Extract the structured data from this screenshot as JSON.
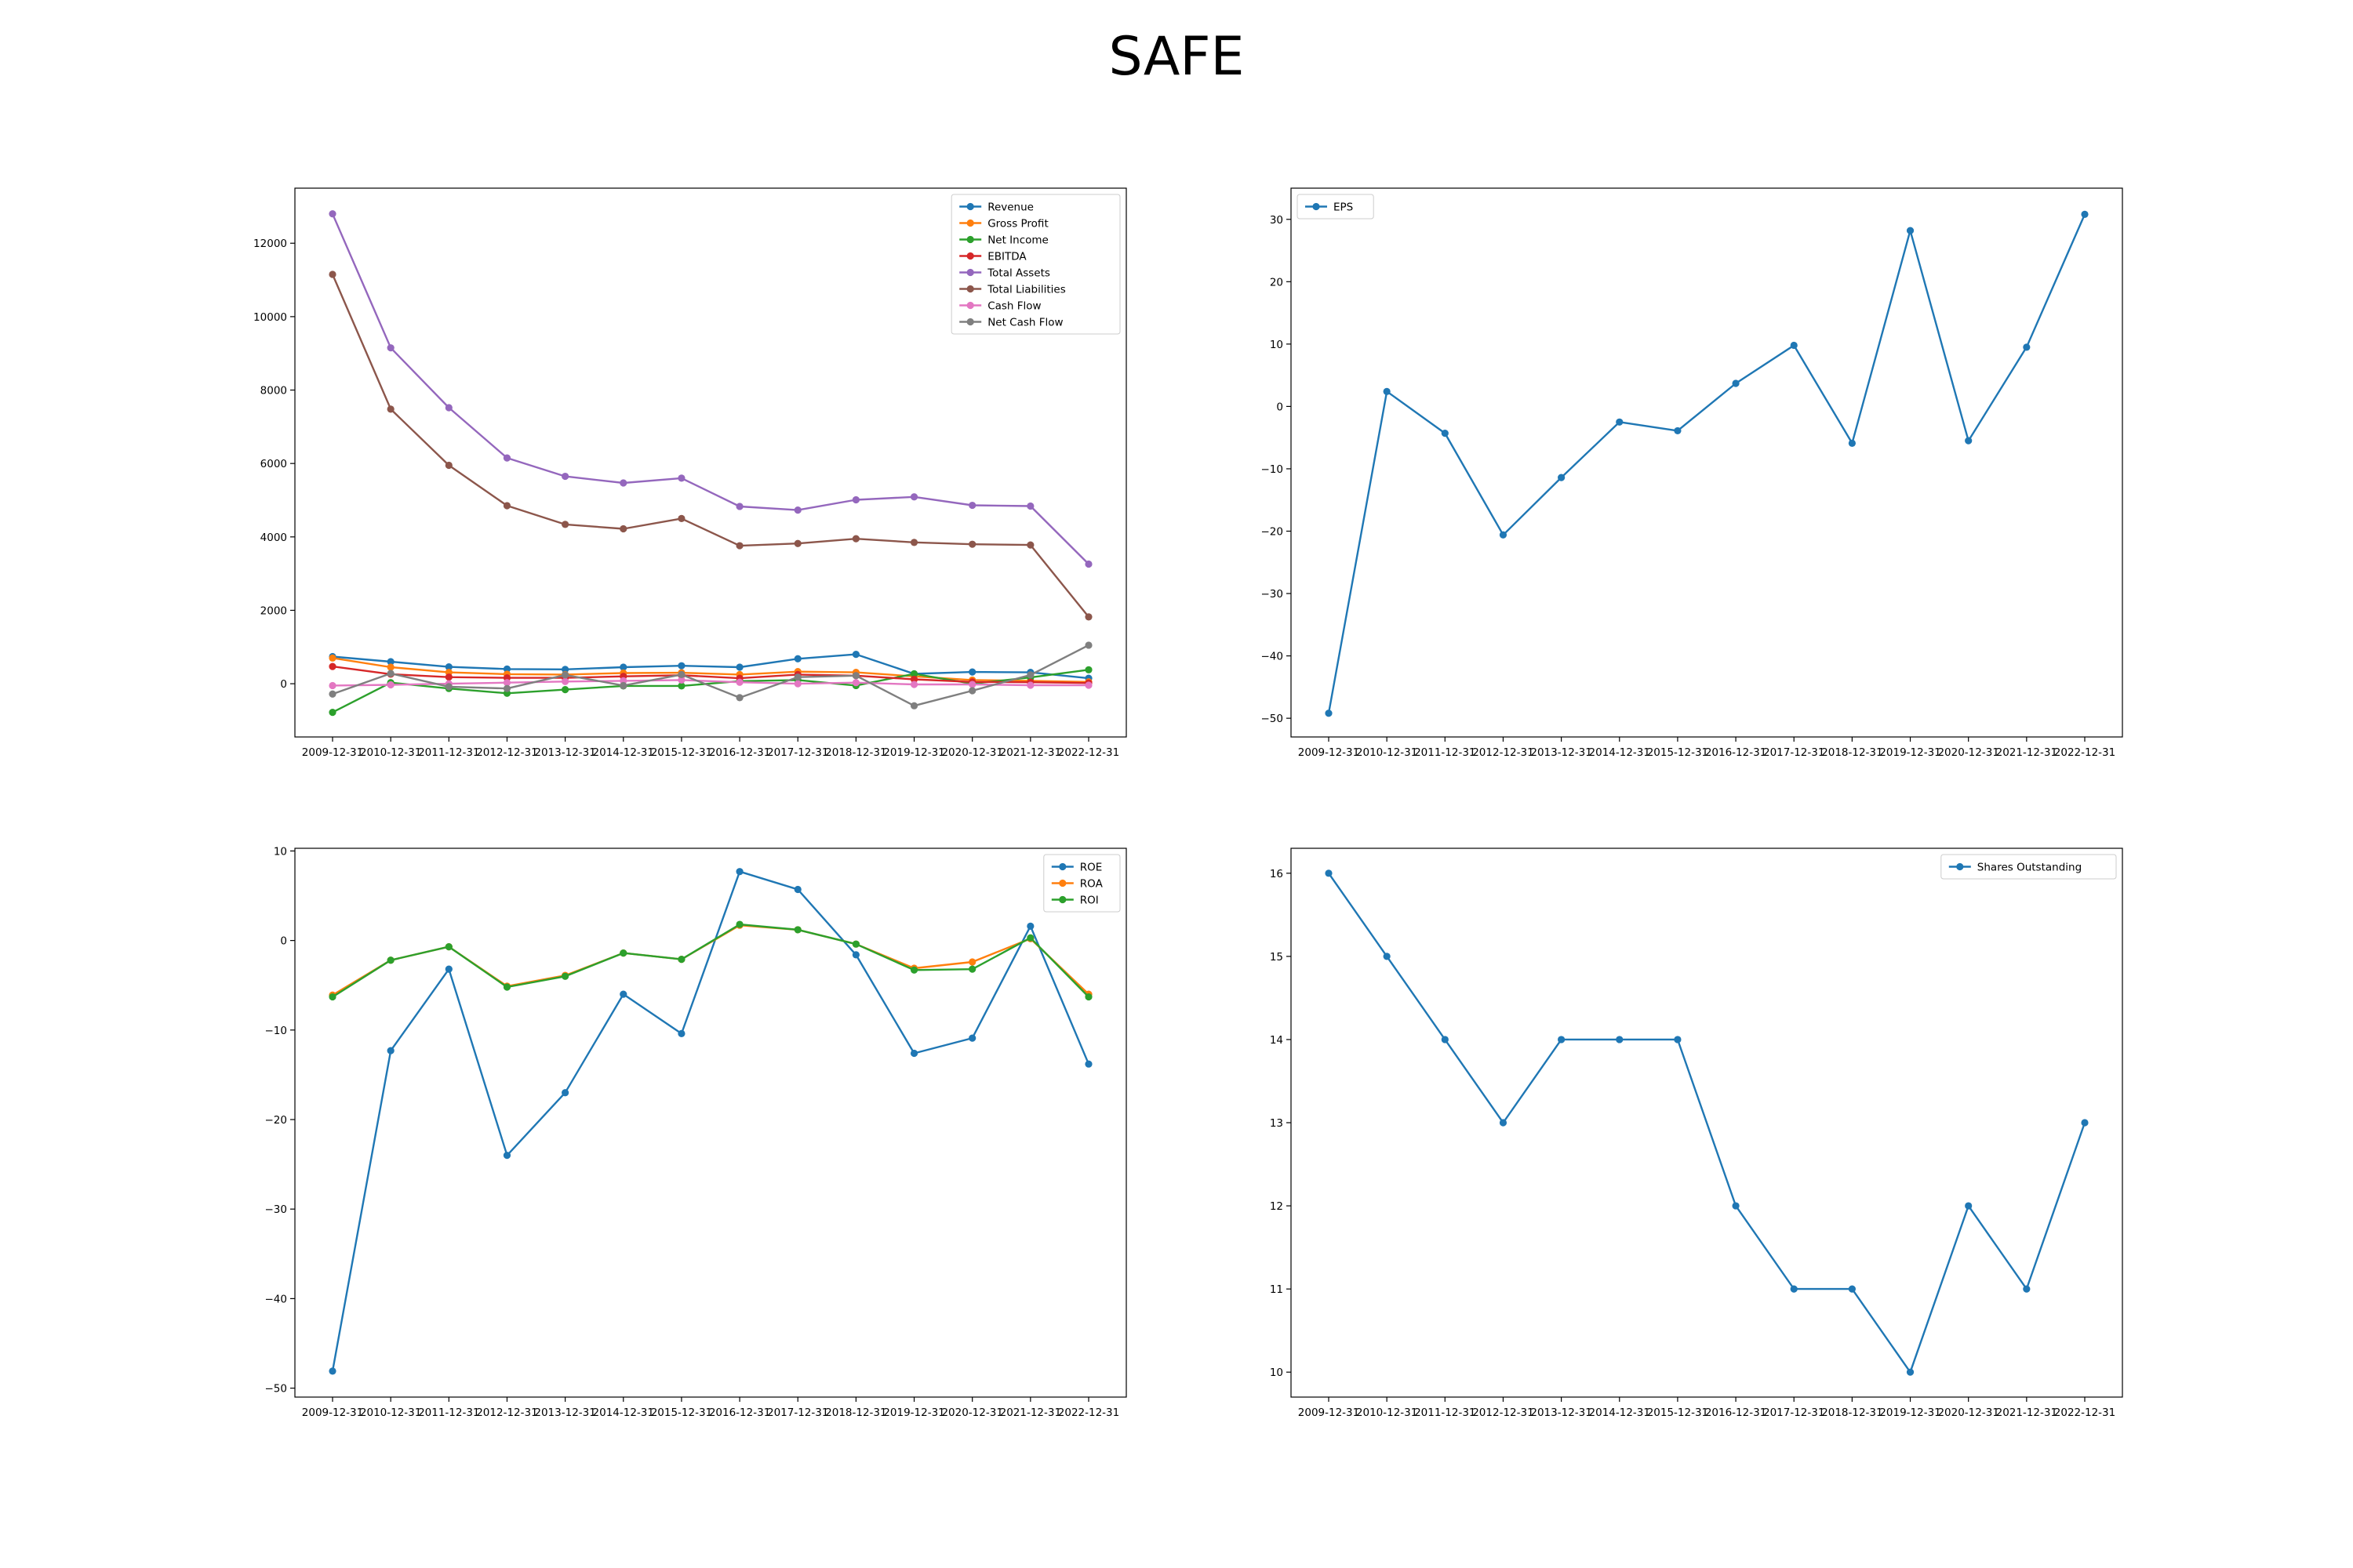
{
  "figure": {
    "title": "SAFE"
  },
  "chart_data": [
    {
      "type": "line",
      "title": "",
      "xlabel": "",
      "ylabel": "",
      "categories": [
        "2009-12-31",
        "2010-12-31",
        "2011-12-31",
        "2012-12-31",
        "2013-12-31",
        "2014-12-31",
        "2015-12-31",
        "2016-12-31",
        "2017-12-31",
        "2018-12-31",
        "2019-12-31",
        "2020-12-31",
        "2021-12-31",
        "2022-12-31"
      ],
      "ylim": [
        -1450,
        13500
      ],
      "yticks": [
        0,
        2000,
        4000,
        6000,
        8000,
        10000,
        12000
      ],
      "legend": "top-right",
      "grid": false,
      "series": [
        {
          "name": "Revenue",
          "color": "#1f77b4",
          "values": [
            740,
            600,
            460,
            400,
            390,
            450,
            490,
            450,
            680,
            800,
            270,
            320,
            310,
            150
          ]
        },
        {
          "name": "Gross Profit",
          "color": "#ff7f0e",
          "values": [
            700,
            450,
            310,
            260,
            250,
            290,
            300,
            250,
            330,
            310,
            200,
            100,
            80,
            50
          ]
        },
        {
          "name": "Net Income",
          "color": "#2ca02c",
          "values": [
            -780,
            30,
            -130,
            -260,
            -160,
            -60,
            -60,
            70,
            100,
            -50,
            270,
            0,
            170,
            380
          ]
        },
        {
          "name": "EBITDA",
          "color": "#d62728",
          "values": [
            470,
            260,
            180,
            160,
            160,
            200,
            230,
            150,
            250,
            220,
            120,
            50,
            40,
            20
          ]
        },
        {
          "name": "Total Assets",
          "color": "#9467bd",
          "values": [
            12800,
            9150,
            7520,
            6150,
            5650,
            5470,
            5600,
            4830,
            4730,
            5010,
            5090,
            4860,
            4840,
            3260
          ]
        },
        {
          "name": "Total Liabilities",
          "color": "#8c564b",
          "values": [
            11150,
            7480,
            5950,
            4850,
            4340,
            4220,
            4500,
            3760,
            3820,
            3950,
            3850,
            3800,
            3780,
            1820
          ]
        },
        {
          "name": "Cash Flow",
          "color": "#e377c2",
          "values": [
            -50,
            -30,
            0,
            30,
            60,
            80,
            100,
            40,
            0,
            30,
            -20,
            -20,
            -40,
            -40
          ]
        },
        {
          "name": "Net Cash Flow",
          "color": "#7f7f7f",
          "values": [
            -280,
            280,
            -80,
            -130,
            240,
            -50,
            250,
            -380,
            180,
            220,
            -600,
            -190,
            240,
            1050
          ]
        }
      ]
    },
    {
      "type": "line",
      "title": "",
      "xlabel": "",
      "ylabel": "",
      "categories": [
        "2009-12-31",
        "2010-12-31",
        "2011-12-31",
        "2012-12-31",
        "2013-12-31",
        "2014-12-31",
        "2015-12-31",
        "2016-12-31",
        "2017-12-31",
        "2018-12-31",
        "2019-12-31",
        "2020-12-31",
        "2021-12-31",
        "2022-12-31"
      ],
      "ylim": [
        -53,
        35
      ],
      "yticks": [
        -50,
        -40,
        -30,
        -20,
        -10,
        0,
        10,
        20,
        30
      ],
      "legend": "top-left",
      "grid": false,
      "series": [
        {
          "name": "EPS",
          "color": "#1f77b4",
          "values": [
            -49.2,
            2.4,
            -4.3,
            -20.6,
            -11.4,
            -2.5,
            -3.9,
            3.7,
            9.8,
            -5.9,
            28.2,
            -5.5,
            9.5,
            30.8
          ]
        }
      ]
    },
    {
      "type": "line",
      "title": "",
      "xlabel": "",
      "ylabel": "",
      "categories": [
        "2009-12-31",
        "2010-12-31",
        "2011-12-31",
        "2012-12-31",
        "2013-12-31",
        "2014-12-31",
        "2015-12-31",
        "2016-12-31",
        "2017-12-31",
        "2018-12-31",
        "2019-12-31",
        "2020-12-31",
        "2021-12-31",
        "2022-12-31"
      ],
      "ylim": [
        -51,
        10.3
      ],
      "yticks": [
        -50,
        -40,
        -30,
        -20,
        -10,
        0,
        10
      ],
      "legend": "top-right",
      "grid": false,
      "series": [
        {
          "name": "ROE",
          "color": "#1f77b4",
          "values": [
            -48.1,
            -12.3,
            -3.2,
            -24.0,
            -17.0,
            -6.0,
            -10.4,
            7.7,
            5.7,
            -1.6,
            -12.6,
            -10.9,
            1.6,
            -13.8
          ]
        },
        {
          "name": "ROA",
          "color": "#ff7f0e",
          "values": [
            -6.1,
            -2.2,
            -0.7,
            -5.1,
            -3.9,
            -1.4,
            -2.1,
            1.7,
            1.2,
            -0.4,
            -3.1,
            -2.4,
            0.2,
            -6.0
          ]
        },
        {
          "name": "ROI",
          "color": "#2ca02c",
          "values": [
            -6.3,
            -2.2,
            -0.7,
            -5.2,
            -4.0,
            -1.4,
            -2.1,
            1.8,
            1.2,
            -0.4,
            -3.3,
            -3.2,
            0.3,
            -6.3
          ]
        }
      ]
    },
    {
      "type": "line",
      "title": "",
      "xlabel": "",
      "ylabel": "",
      "categories": [
        "2009-12-31",
        "2010-12-31",
        "2011-12-31",
        "2012-12-31",
        "2013-12-31",
        "2014-12-31",
        "2015-12-31",
        "2016-12-31",
        "2017-12-31",
        "2018-12-31",
        "2019-12-31",
        "2020-12-31",
        "2021-12-31",
        "2022-12-31"
      ],
      "ylim": [
        9.7,
        16.3
      ],
      "yticks": [
        10,
        11,
        12,
        13,
        14,
        15,
        16
      ],
      "legend": "top-right",
      "grid": false,
      "series": [
        {
          "name": "Shares Outstanding",
          "color": "#1f77b4",
          "values": [
            16,
            15,
            14,
            13,
            14,
            14,
            14,
            12,
            11,
            11,
            10,
            12,
            11,
            13
          ]
        }
      ]
    }
  ]
}
